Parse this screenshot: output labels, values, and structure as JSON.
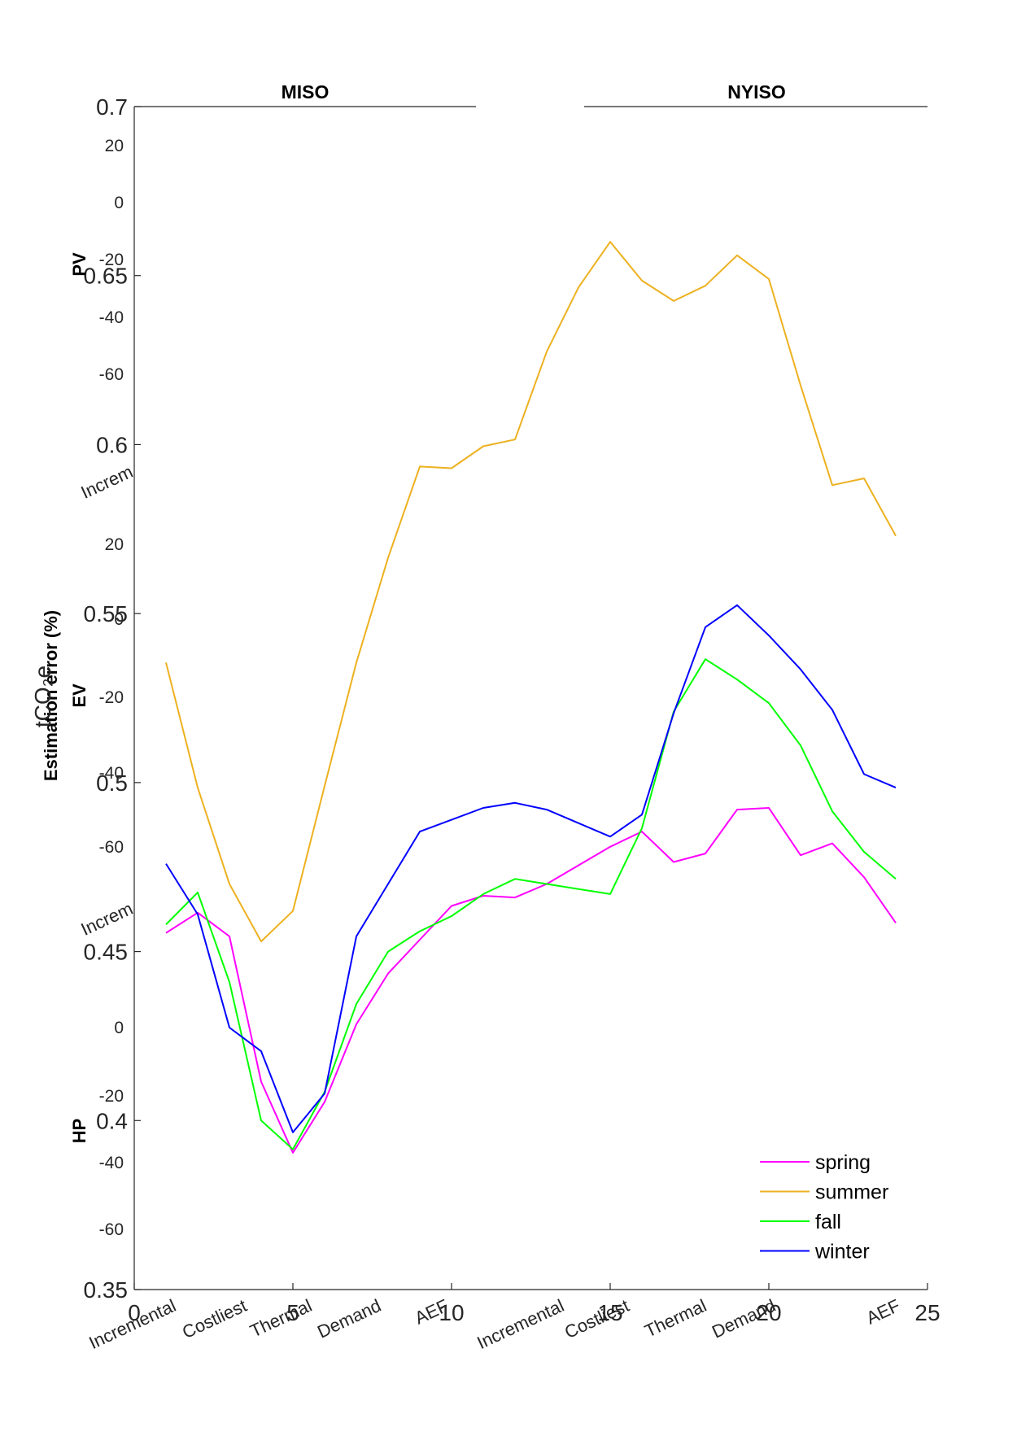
{
  "chart_data": {
    "type": "line",
    "x": [
      1,
      2,
      3,
      4,
      5,
      6,
      7,
      8,
      9,
      10,
      11,
      12,
      13,
      14,
      15,
      16,
      17,
      18,
      19,
      20,
      21,
      22,
      23,
      24
    ],
    "xlim": [
      0,
      25
    ],
    "ylim": [
      0.35,
      0.7
    ],
    "xticks": [
      "0",
      "5",
      "10",
      "15",
      "20",
      "25"
    ],
    "yticks": [
      "0.35",
      "0.4",
      "0.45",
      "0.5",
      "0.55",
      "0.6",
      "0.65",
      "0.7"
    ],
    "box": false,
    "legend_position": "bottom-right",
    "series": [
      {
        "name": "spring",
        "color": "#ff00ff",
        "values": [
          0.4555,
          0.4615,
          0.4545,
          0.4115,
          0.3905,
          0.4055,
          0.4285,
          0.4435,
          0.4535,
          0.4635,
          0.4665,
          0.466,
          0.47,
          0.4755,
          0.481,
          0.4855,
          0.4765,
          0.479,
          0.492,
          0.4925,
          0.4785,
          0.482,
          0.472,
          0.4585
        ]
      },
      {
        "name": "summer",
        "color": "#edb120",
        "values": [
          0.5355,
          0.4985,
          0.47,
          0.453,
          0.462,
          0.499,
          0.5355,
          0.5665,
          0.5935,
          0.593,
          0.5995,
          0.6015,
          0.6275,
          0.6465,
          0.66,
          0.6485,
          0.6425,
          0.647,
          0.656,
          0.649,
          0.6175,
          0.588,
          0.59,
          0.573
        ]
      },
      {
        "name": "fall",
        "color": "#00ff00",
        "values": [
          0.458,
          0.4675,
          0.441,
          0.4,
          0.3915,
          0.4085,
          0.4345,
          0.45,
          0.456,
          0.4605,
          0.467,
          0.4715,
          0.47,
          0.4685,
          0.467,
          0.4865,
          0.521,
          0.5365,
          0.5305,
          0.5235,
          0.511,
          0.4915,
          0.4795,
          0.4715
        ]
      },
      {
        "name": "winter",
        "color": "#0000ff",
        "values": [
          0.476,
          0.461,
          0.4275,
          0.4205,
          0.3965,
          0.408,
          0.4545,
          0.47,
          0.4855,
          0.489,
          0.4925,
          0.494,
          0.492,
          0.488,
          0.484,
          0.4905,
          0.5205,
          0.546,
          0.5525,
          0.5435,
          0.5335,
          0.5215,
          0.5025,
          0.4985
        ]
      }
    ]
  },
  "facets": {
    "left_title": "MISO",
    "right_title": "NYISO"
  },
  "ghost_axes": {
    "row_labels": [
      "PV",
      "EV",
      "HP"
    ],
    "ylabel_estimation": "Estimation error (%)",
    "ylabel_tco2e": "tCO₂e",
    "pv_ticks": [
      "20",
      "0",
      "-20",
      "-40",
      "-60"
    ],
    "ev_ticks": [
      "20",
      "0",
      "-20",
      "-40",
      "-60"
    ],
    "hp_ticks": [
      "0",
      "-20",
      "-40",
      "-60"
    ],
    "category_labels": [
      "Incremental",
      "Costliest",
      "Thermal",
      "Demand",
      "AEF"
    ],
    "partial_label": "Increm"
  }
}
